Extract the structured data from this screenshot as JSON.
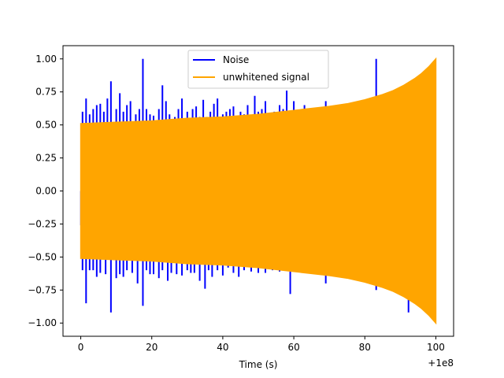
{
  "chart_data": {
    "type": "line",
    "title": "",
    "xlabel": "Time (s)",
    "ylabel": "",
    "x_offset_label": "+1e8",
    "xlim": [
      -5,
      105
    ],
    "ylim": [
      -1.1,
      1.1
    ],
    "x_ticks": [
      {
        "value": 0,
        "label": "0"
      },
      {
        "value": 20,
        "label": "20"
      },
      {
        "value": 40,
        "label": "40"
      },
      {
        "value": 60,
        "label": "60"
      },
      {
        "value": 80,
        "label": "80"
      },
      {
        "value": 100,
        "label": "100"
      }
    ],
    "y_ticks": [
      {
        "value": 1.0,
        "label": "1.00"
      },
      {
        "value": 0.75,
        "label": "0.75"
      },
      {
        "value": 0.5,
        "label": "0.50"
      },
      {
        "value": 0.25,
        "label": "0.25"
      },
      {
        "value": 0.0,
        "label": "0.00"
      },
      {
        "value": -0.25,
        "label": "−0.25"
      },
      {
        "value": -0.5,
        "label": "−0.50"
      },
      {
        "value": -0.75,
        "label": "−0.75"
      },
      {
        "value": -1.0,
        "label": "−1.00"
      }
    ],
    "grid": false,
    "legend": {
      "placement": "upper center",
      "entries": [
        {
          "name": "Noise",
          "color": "#0000ff"
        },
        {
          "name": "unwhitened signal",
          "color": "#ffa500"
        }
      ]
    },
    "series": [
      {
        "name": "Noise",
        "color": "#0000ff",
        "style": "spikes",
        "baseline": 0.5,
        "spikes_upper": [
          [
            0.5,
            0.6
          ],
          [
            1.5,
            0.7
          ],
          [
            2.5,
            0.58
          ],
          [
            3.5,
            0.62
          ],
          [
            4.5,
            0.65
          ],
          [
            5.5,
            0.66
          ],
          [
            6.5,
            0.6
          ],
          [
            7.5,
            0.7
          ],
          [
            8.5,
            0.83
          ],
          [
            10,
            0.62
          ],
          [
            11,
            0.74
          ],
          [
            12,
            0.6
          ],
          [
            13,
            0.65
          ],
          [
            14,
            0.68
          ],
          [
            15.5,
            0.58
          ],
          [
            16.5,
            0.62
          ],
          [
            17.5,
            1.0
          ],
          [
            18.5,
            0.62
          ],
          [
            19.5,
            0.58
          ],
          [
            20.5,
            0.57
          ],
          [
            22,
            0.62
          ],
          [
            23,
            0.8
          ],
          [
            24,
            0.68
          ],
          [
            25,
            0.58
          ],
          [
            26.5,
            0.56
          ],
          [
            27.5,
            0.62
          ],
          [
            28.5,
            0.7
          ],
          [
            30,
            0.6
          ],
          [
            31.5,
            0.62
          ],
          [
            32.5,
            0.64
          ],
          [
            33.5,
            0.56
          ],
          [
            34.5,
            0.69
          ],
          [
            35.5,
            0.56
          ],
          [
            36.5,
            0.6
          ],
          [
            37.5,
            0.66
          ],
          [
            38.5,
            0.7
          ],
          [
            40,
            0.58
          ],
          [
            41,
            0.6
          ],
          [
            42,
            0.62
          ],
          [
            43,
            0.64
          ],
          [
            44,
            0.56
          ],
          [
            45,
            0.6
          ],
          [
            46,
            0.58
          ],
          [
            47,
            0.65
          ],
          [
            49,
            0.72
          ],
          [
            50,
            0.6
          ],
          [
            51,
            0.62
          ],
          [
            52,
            0.68
          ],
          [
            53.5,
            0.56
          ],
          [
            54.5,
            0.6
          ],
          [
            56,
            0.65
          ],
          [
            57,
            0.62
          ],
          [
            58,
            0.76
          ],
          [
            59,
            0.6
          ],
          [
            60,
            0.68
          ],
          [
            62,
            0.6
          ],
          [
            63,
            0.65
          ],
          [
            64.5,
            0.58
          ],
          [
            66,
            0.62
          ],
          [
            67,
            0.6
          ],
          [
            68,
            0.62
          ],
          [
            69,
            0.68
          ],
          [
            71,
            0.6
          ],
          [
            73,
            0.6
          ],
          [
            75,
            0.62
          ],
          [
            77,
            0.62
          ],
          [
            80,
            0.6
          ],
          [
            83.2,
            1.0
          ],
          [
            86,
            0.6
          ],
          [
            89,
            0.62
          ],
          [
            92,
            0.6
          ]
        ],
        "spikes_lower": [
          [
            0.5,
            -0.6
          ],
          [
            1.5,
            -0.85
          ],
          [
            2.5,
            -0.6
          ],
          [
            3.5,
            -0.6
          ],
          [
            4.5,
            -0.65
          ],
          [
            5.5,
            -0.62
          ],
          [
            7,
            -0.63
          ],
          [
            8.5,
            -0.92
          ],
          [
            10,
            -0.66
          ],
          [
            11,
            -0.63
          ],
          [
            12,
            -0.65
          ],
          [
            13,
            -0.6
          ],
          [
            14.5,
            -0.62
          ],
          [
            16,
            -0.7
          ],
          [
            17.5,
            -0.87
          ],
          [
            18.5,
            -0.6
          ],
          [
            19.5,
            -0.63
          ],
          [
            20.5,
            -0.63
          ],
          [
            22,
            -0.66
          ],
          [
            23,
            -0.6
          ],
          [
            24.5,
            -0.68
          ],
          [
            25.5,
            -0.62
          ],
          [
            27,
            -0.63
          ],
          [
            28.5,
            -0.64
          ],
          [
            30,
            -0.6
          ],
          [
            31,
            -0.62
          ],
          [
            32,
            -0.62
          ],
          [
            33.5,
            -0.68
          ],
          [
            35,
            -0.74
          ],
          [
            36,
            -0.6
          ],
          [
            37,
            -0.65
          ],
          [
            38.5,
            -0.6
          ],
          [
            40,
            -0.64
          ],
          [
            41.5,
            -0.58
          ],
          [
            43,
            -0.62
          ],
          [
            44.5,
            -0.65
          ],
          [
            46,
            -0.6
          ],
          [
            48,
            -0.61
          ],
          [
            50,
            -0.62
          ],
          [
            52,
            -0.62
          ],
          [
            54,
            -0.6
          ],
          [
            56,
            -0.61
          ],
          [
            58,
            -0.6
          ],
          [
            59,
            -0.78
          ],
          [
            61,
            -0.6
          ],
          [
            63,
            -0.58
          ],
          [
            65,
            -0.62
          ],
          [
            67,
            -0.6
          ],
          [
            69,
            -0.7
          ],
          [
            71,
            -0.6
          ],
          [
            73,
            -0.62
          ],
          [
            75,
            -0.66
          ],
          [
            78,
            -0.62
          ],
          [
            81,
            -0.62
          ],
          [
            83.2,
            -0.75
          ],
          [
            86,
            -0.66
          ],
          [
            89,
            -0.7
          ],
          [
            92.3,
            -0.92
          ],
          [
            95,
            -0.66
          ]
        ]
      },
      {
        "name": "unwhitened signal",
        "color": "#ffa500",
        "style": "envelope",
        "envelope": {
          "x": [
            0,
            10,
            20,
            30,
            40,
            50,
            60,
            70,
            75,
            80,
            85,
            88,
            91,
            94,
            96,
            98,
            99,
            100
          ],
          "amplitude": [
            0.51,
            0.52,
            0.53,
            0.55,
            0.56,
            0.58,
            0.61,
            0.64,
            0.66,
            0.69,
            0.73,
            0.76,
            0.8,
            0.85,
            0.89,
            0.94,
            0.97,
            1.0
          ]
        }
      }
    ]
  }
}
